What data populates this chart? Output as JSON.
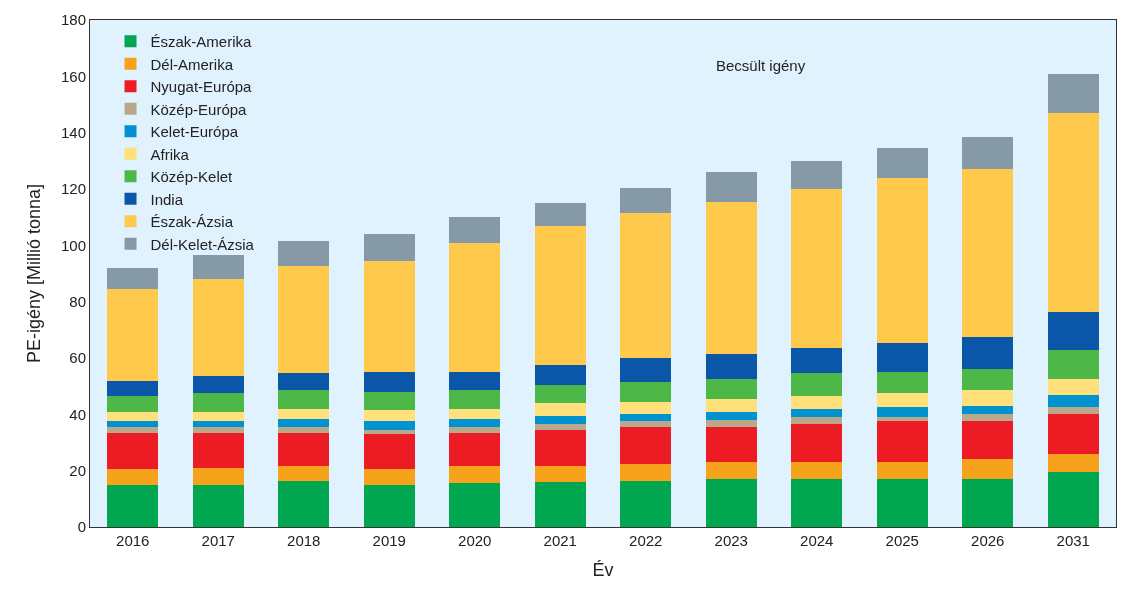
{
  "chart_data": {
    "type": "bar",
    "stacked": true,
    "xlabel": "Év",
    "ylabel": "PE-igény [Millió tonna]",
    "categories": [
      "2016",
      "2017",
      "2018",
      "2019",
      "2020",
      "2021",
      "2022",
      "2023",
      "2024",
      "2025",
      "2026",
      "2031"
    ],
    "series": [
      {
        "name": "Észak-Amerika",
        "color": "#00a650",
        "values": [
          15,
          15,
          16.5,
          15,
          15.5,
          16,
          16.5,
          17,
          17,
          17,
          17,
          19.5
        ]
      },
      {
        "name": "Dél-Amerika",
        "color": "#f7a21b",
        "values": [
          5.5,
          6,
          5,
          5.5,
          6,
          5.5,
          6,
          6,
          6,
          6,
          7,
          6.5
        ]
      },
      {
        "name": "Nyugat-Európa",
        "color": "#ed1c24",
        "values": [
          13,
          12.5,
          12,
          12.5,
          12,
          13,
          13,
          12.5,
          13.5,
          14.5,
          13.5,
          14
        ]
      },
      {
        "name": "Közép-Európa",
        "color": "#b9a88c",
        "values": [
          2,
          2,
          2,
          1.5,
          2,
          2,
          2,
          2.5,
          2.5,
          1.5,
          2.5,
          2.5
        ]
      },
      {
        "name": "Kelet-Európa",
        "color": "#0093d0",
        "values": [
          2,
          2,
          3,
          3,
          3,
          3,
          2.5,
          3,
          3,
          3.5,
          3,
          4.5
        ]
      },
      {
        "name": "Afrika",
        "color": "#ffe07a",
        "values": [
          3.5,
          3.5,
          3.5,
          4,
          3.5,
          4.5,
          4.5,
          4.5,
          4.5,
          5,
          5.5,
          5.5
        ]
      },
      {
        "name": "Közép-Kelet",
        "color": "#4db848",
        "values": [
          5.5,
          6.5,
          6.5,
          6.5,
          6.5,
          6.5,
          7,
          7,
          8,
          7.5,
          7.5,
          10.5
        ]
      },
      {
        "name": "India",
        "color": "#0a56a8",
        "values": [
          5.5,
          6,
          6,
          7,
          6.5,
          7,
          8.5,
          9,
          9,
          10.5,
          11.5,
          13.5
        ]
      },
      {
        "name": "Észak-Ázsia",
        "color": "#ffc94c",
        "values": [
          32.5,
          34.5,
          38,
          39.5,
          46,
          49.5,
          51.5,
          54,
          56.5,
          58.5,
          59.5,
          70.5
        ]
      },
      {
        "name": "Dél-Kelet-Ázsia",
        "color": "#8599a6",
        "values": [
          7.5,
          8.5,
          9,
          9.5,
          9,
          8,
          9,
          10.5,
          10,
          10.5,
          11.5,
          14
        ]
      }
    ],
    "ylim": [
      0,
      180
    ],
    "yticks": [
      0,
      20,
      40,
      60,
      80,
      100,
      120,
      140,
      160,
      180
    ],
    "annotations": [
      "Becsült igény"
    ],
    "legend": "top left",
    "grid": false
  }
}
